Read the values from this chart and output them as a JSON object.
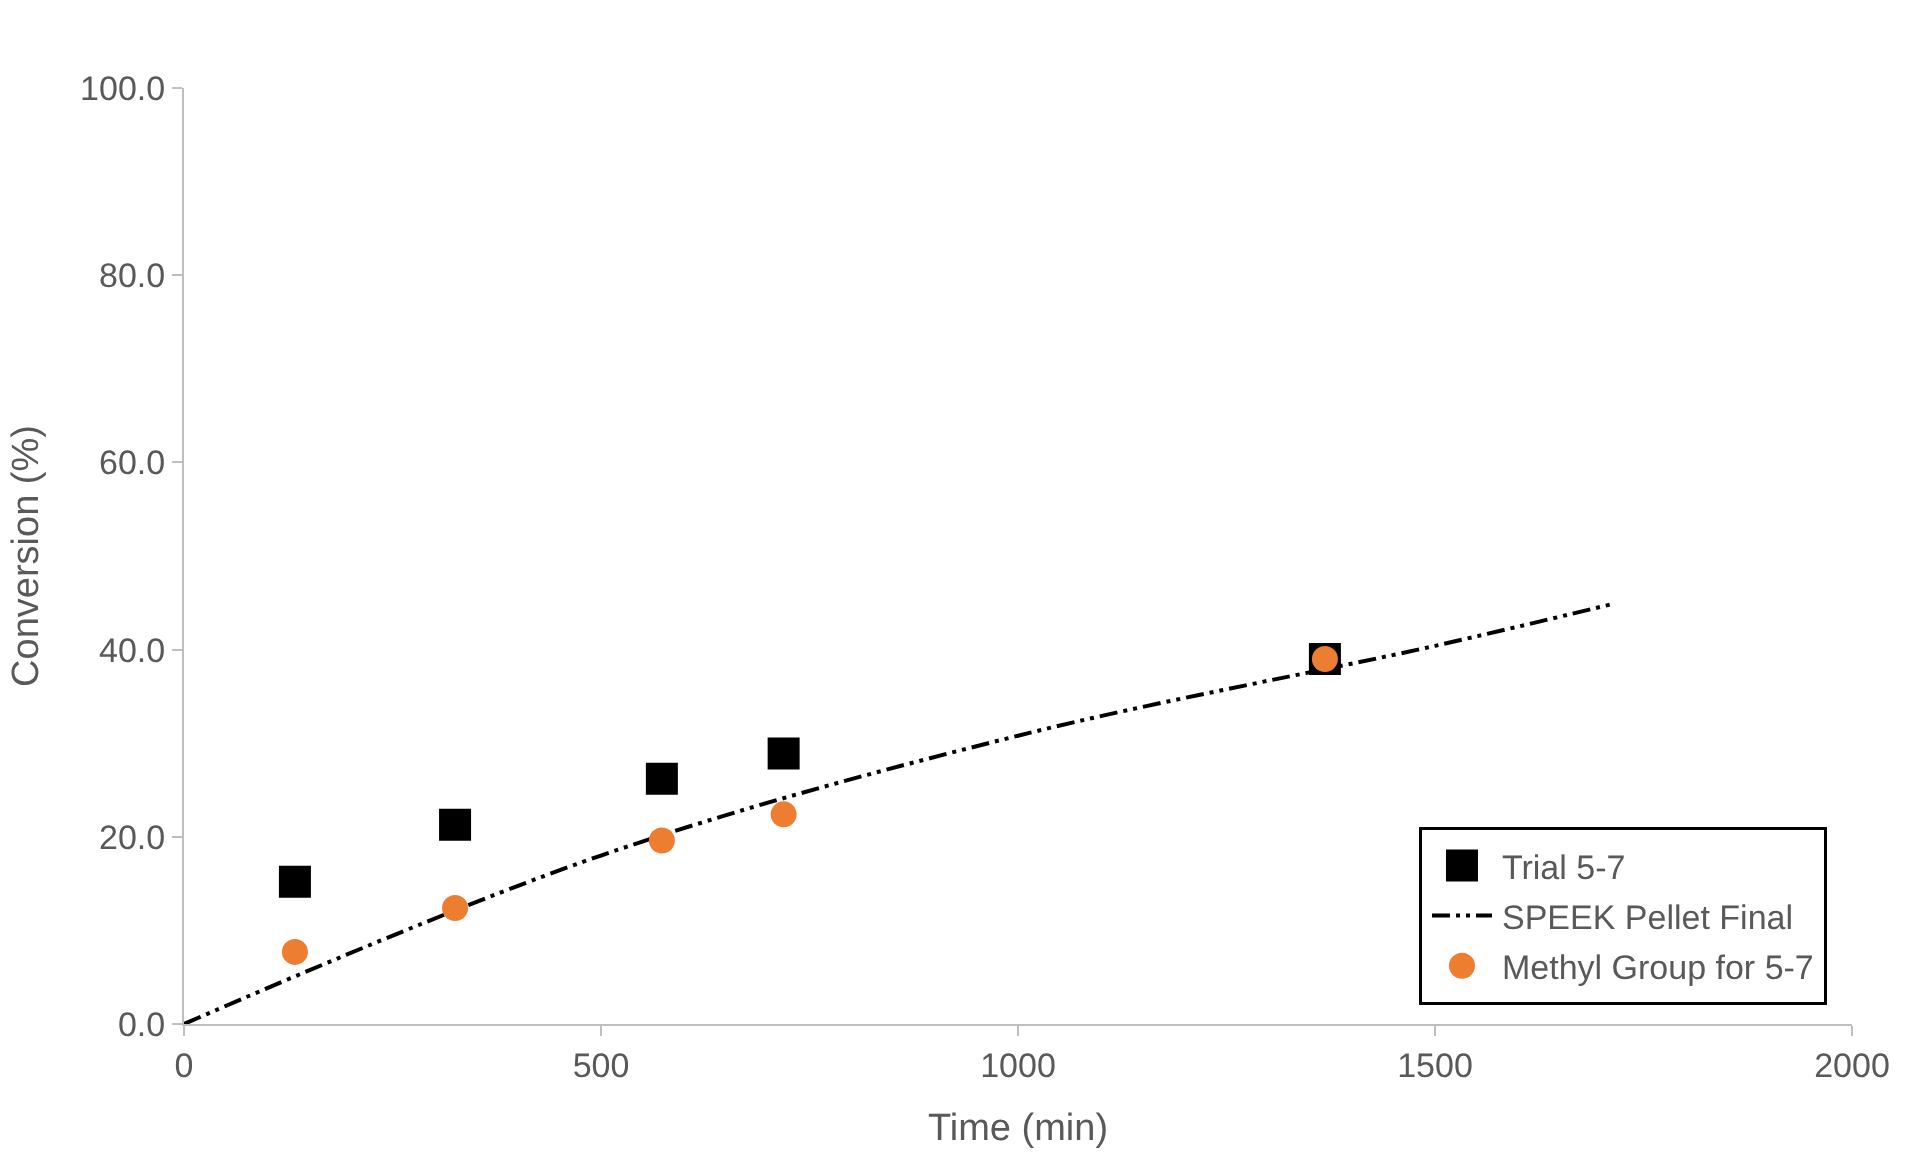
{
  "chart_data": {
    "type": "scatter",
    "xlabel": "Time (min)",
    "ylabel": "Conversion (%)",
    "xlim": [
      0,
      2000
    ],
    "xticks": [
      0,
      500,
      1000,
      1500,
      2000
    ],
    "ylim": [
      0,
      100
    ],
    "yticks": [
      {
        "value": 0,
        "label": "0.0"
      },
      {
        "value": 20,
        "label": "20.0"
      },
      {
        "value": 40,
        "label": "40.0"
      },
      {
        "value": 60,
        "label": "60.0"
      },
      {
        "value": 80,
        "label": "80.0"
      },
      {
        "value": 100,
        "label": "100.0"
      }
    ],
    "legend": "bottom right",
    "series": [
      {
        "name": "Trial 5-7",
        "marker": "square",
        "color": "#000000",
        "x": [
          133,
          325,
          573,
          719,
          1368
        ],
        "values": [
          15.2,
          21.3,
          26.2,
          28.9,
          39.0
        ]
      },
      {
        "name": "SPEEK Pellet Final",
        "type": "line",
        "marker": "none",
        "line_style": "dashdotdot",
        "color": "#000000",
        "x": [
          0,
          500,
          1000,
          1500,
          1714
        ],
        "values": [
          0,
          18.0,
          30.8,
          40.4,
          44.9
        ]
      },
      {
        "name": "Methyl Group for 5-7",
        "marker": "circle",
        "color": "#ed7d31",
        "x": [
          133,
          325,
          573,
          719,
          1368
        ],
        "values": [
          7.7,
          12.4,
          19.6,
          22.4,
          39.0
        ]
      }
    ]
  }
}
